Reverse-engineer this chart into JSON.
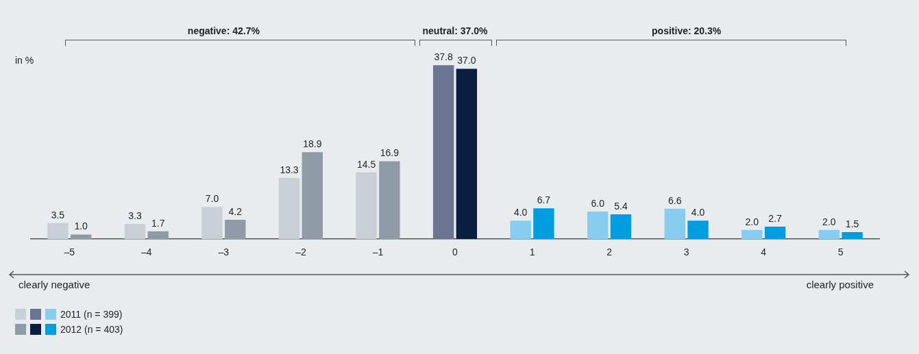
{
  "chart_data": {
    "type": "bar",
    "ylabel": "in %",
    "legend": "bottom left",
    "categories": [
      "–5",
      "–4",
      "–3",
      "–2",
      "–1",
      "0",
      "1",
      "2",
      "3",
      "4",
      "5"
    ],
    "series": [
      {
        "name": "2011 (n = 399)",
        "colors": [
          "#c8cfd6",
          "#c8cfd6",
          "#c8cfd6",
          "#c8cfd6",
          "#c8cfd6",
          "#6b7491",
          "#87cdf0",
          "#87cdf0",
          "#87cdf0",
          "#87cdf0",
          "#87cdf0"
        ],
        "values": [
          3.5,
          3.3,
          7.0,
          13.3,
          14.5,
          37.8,
          4.0,
          6.0,
          6.6,
          2.0,
          2.0
        ],
        "value_labels": [
          "3.5",
          "3.3",
          "7.0",
          "13.3",
          "14.5",
          "37.8",
          "4.0",
          "6.0",
          "6.6",
          "2.0",
          "2.0"
        ]
      },
      {
        "name": "2012 (n = 403)",
        "colors": [
          "#8f9ca8",
          "#8f9ca8",
          "#8f9ca8",
          "#8f9ca8",
          "#8f9ca8",
          "#0a1f40",
          "#009ee0",
          "#009ee0",
          "#009ee0",
          "#009ee0",
          "#009ee0"
        ],
        "values": [
          1.0,
          1.7,
          4.2,
          18.9,
          16.9,
          37.0,
          6.7,
          5.4,
          4.0,
          2.7,
          1.5
        ],
        "value_labels": [
          "1.0",
          "1.7",
          "4.2",
          "18.9",
          "16.9",
          "37.0",
          "6.7",
          "5.4",
          "4.0",
          "2.7",
          "1.5"
        ]
      }
    ],
    "annotations": [
      "negative: 42.7%",
      "neutral: 37.0%",
      "positive: 20.3%",
      "clearly negative",
      "clearly positive"
    ]
  }
}
